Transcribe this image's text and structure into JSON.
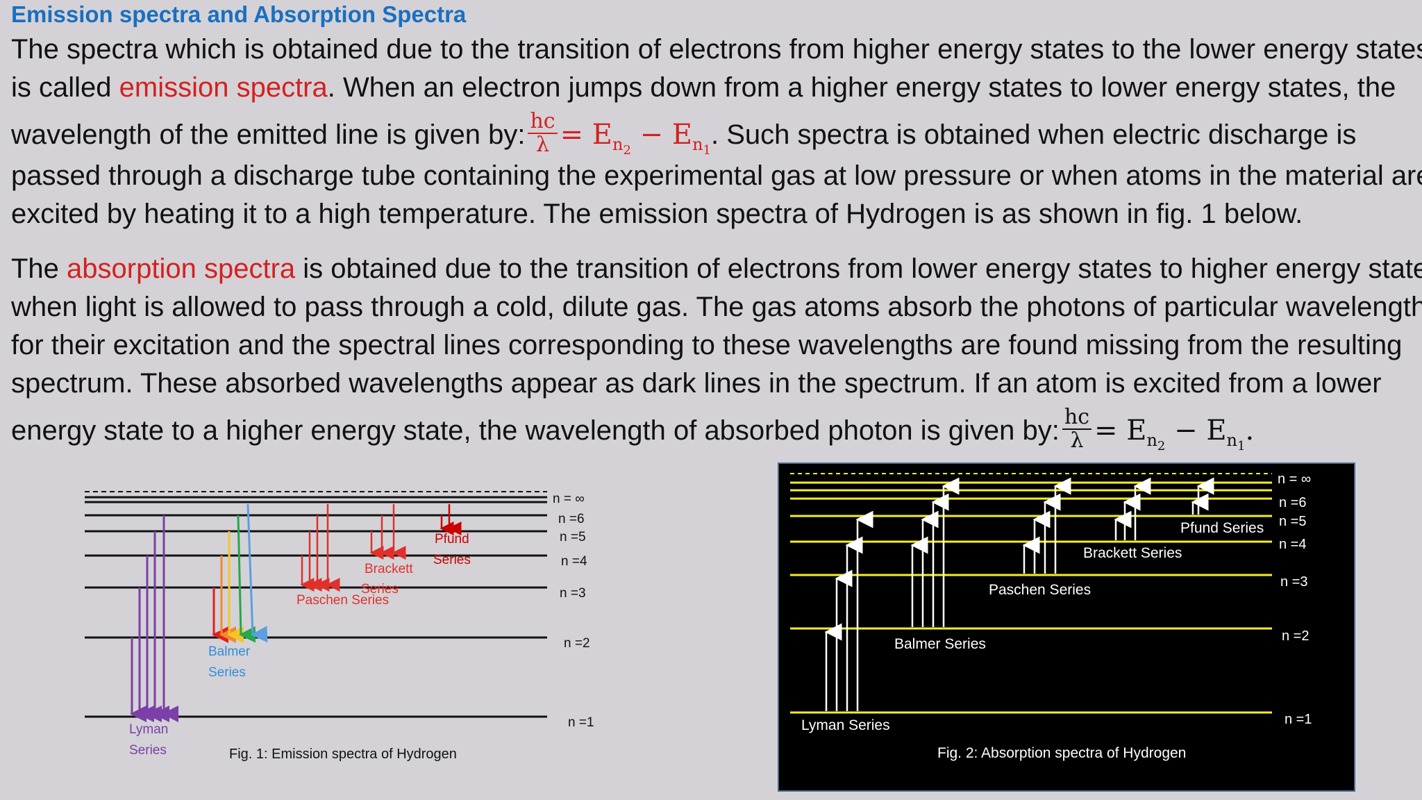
{
  "title": "Emission spectra and Absorption Spectra",
  "emission_paragraph": {
    "l1": "The spectra which is obtained due to the transition of electrons from higher energy states to the lower energy states",
    "l2a": "is called ",
    "l2term": "emission spectra",
    "l2b": ". When an electron jumps down from a higher energy states to lower energy states, the",
    "l3a": "wavelength of the emitted line is given by:",
    "l3b": ". Such spectra is obtained when electric discharge is",
    "l4": "passed through a discharge tube containing the experimental gas at low pressure or when atoms in the material are",
    "l5": "excited by heating it to a high temperature. The emission spectra of Hydrogen is as shown in fig. 1 below."
  },
  "absorption_paragraph": {
    "l1a": "The ",
    "l1term": "absorption spectra",
    "l1b": " is obtained due to the transition of electrons from lower energy states to higher energy states",
    "l2": "when light is allowed to pass through  a cold, dilute gas. The gas atoms absorb the photons of particular wavelengths",
    "l3": "for their excitation and the spectral lines corresponding to these wavelengths are found missing from the resulting",
    "l4": "spectrum. These absorbed wavelengths appear as dark lines in the spectrum. If an atom is excited from a lower",
    "l5a": "energy state to a higher energy state, the wavelength of absorbed photon is given by:"
  },
  "formula": {
    "num": "hc",
    "den": "λ",
    "eq": "= E",
    "sub1": "n",
    "subsub1": "2",
    "minus": " − E",
    "sub2": "n",
    "subsub2": "1",
    "end": "."
  },
  "fig1": {
    "caption": "Fig. 1: Emission spectra of Hydrogen",
    "levels": [
      "n = ∞",
      "n =6",
      "n =5",
      "n =4",
      "n =3",
      "n =2",
      "n =1"
    ],
    "series": [
      {
        "name_lines": [
          "Lyman",
          "Series"
        ],
        "color": "#7b3fa8"
      },
      {
        "name_lines": [
          "Balmer",
          "Series"
        ],
        "color": "#2f8fd8"
      },
      {
        "name_lines": [
          "Paschen Series"
        ],
        "color": "#e0302a"
      },
      {
        "name_lines": [
          "Brackett",
          "Series"
        ],
        "color": "#e0302a"
      },
      {
        "name_lines": [
          "Pfund",
          "Series"
        ],
        "color": "#cc0000"
      }
    ],
    "balmer_colors": [
      "#e02020",
      "#f08a2a",
      "#f2c62a",
      "#23a84a",
      "#5a9fe0"
    ]
  },
  "fig2": {
    "caption": "Fig. 2: Absorption spectra of Hydrogen",
    "levels": [
      "n = ∞",
      "n =6",
      "n =5",
      "n =4",
      "n =3",
      "n =2",
      "n =1"
    ],
    "series": [
      "Lyman Series",
      "Balmer Series",
      "Paschen Series",
      "Brackett Series",
      "Pfund Series"
    ],
    "background": "#000000",
    "level_color": "#f5ee20",
    "arrow_color": "#ffffff"
  },
  "colors": {
    "title": "#1a6fc0",
    "highlight": "#d42020",
    "background": "#d4d2d6"
  }
}
